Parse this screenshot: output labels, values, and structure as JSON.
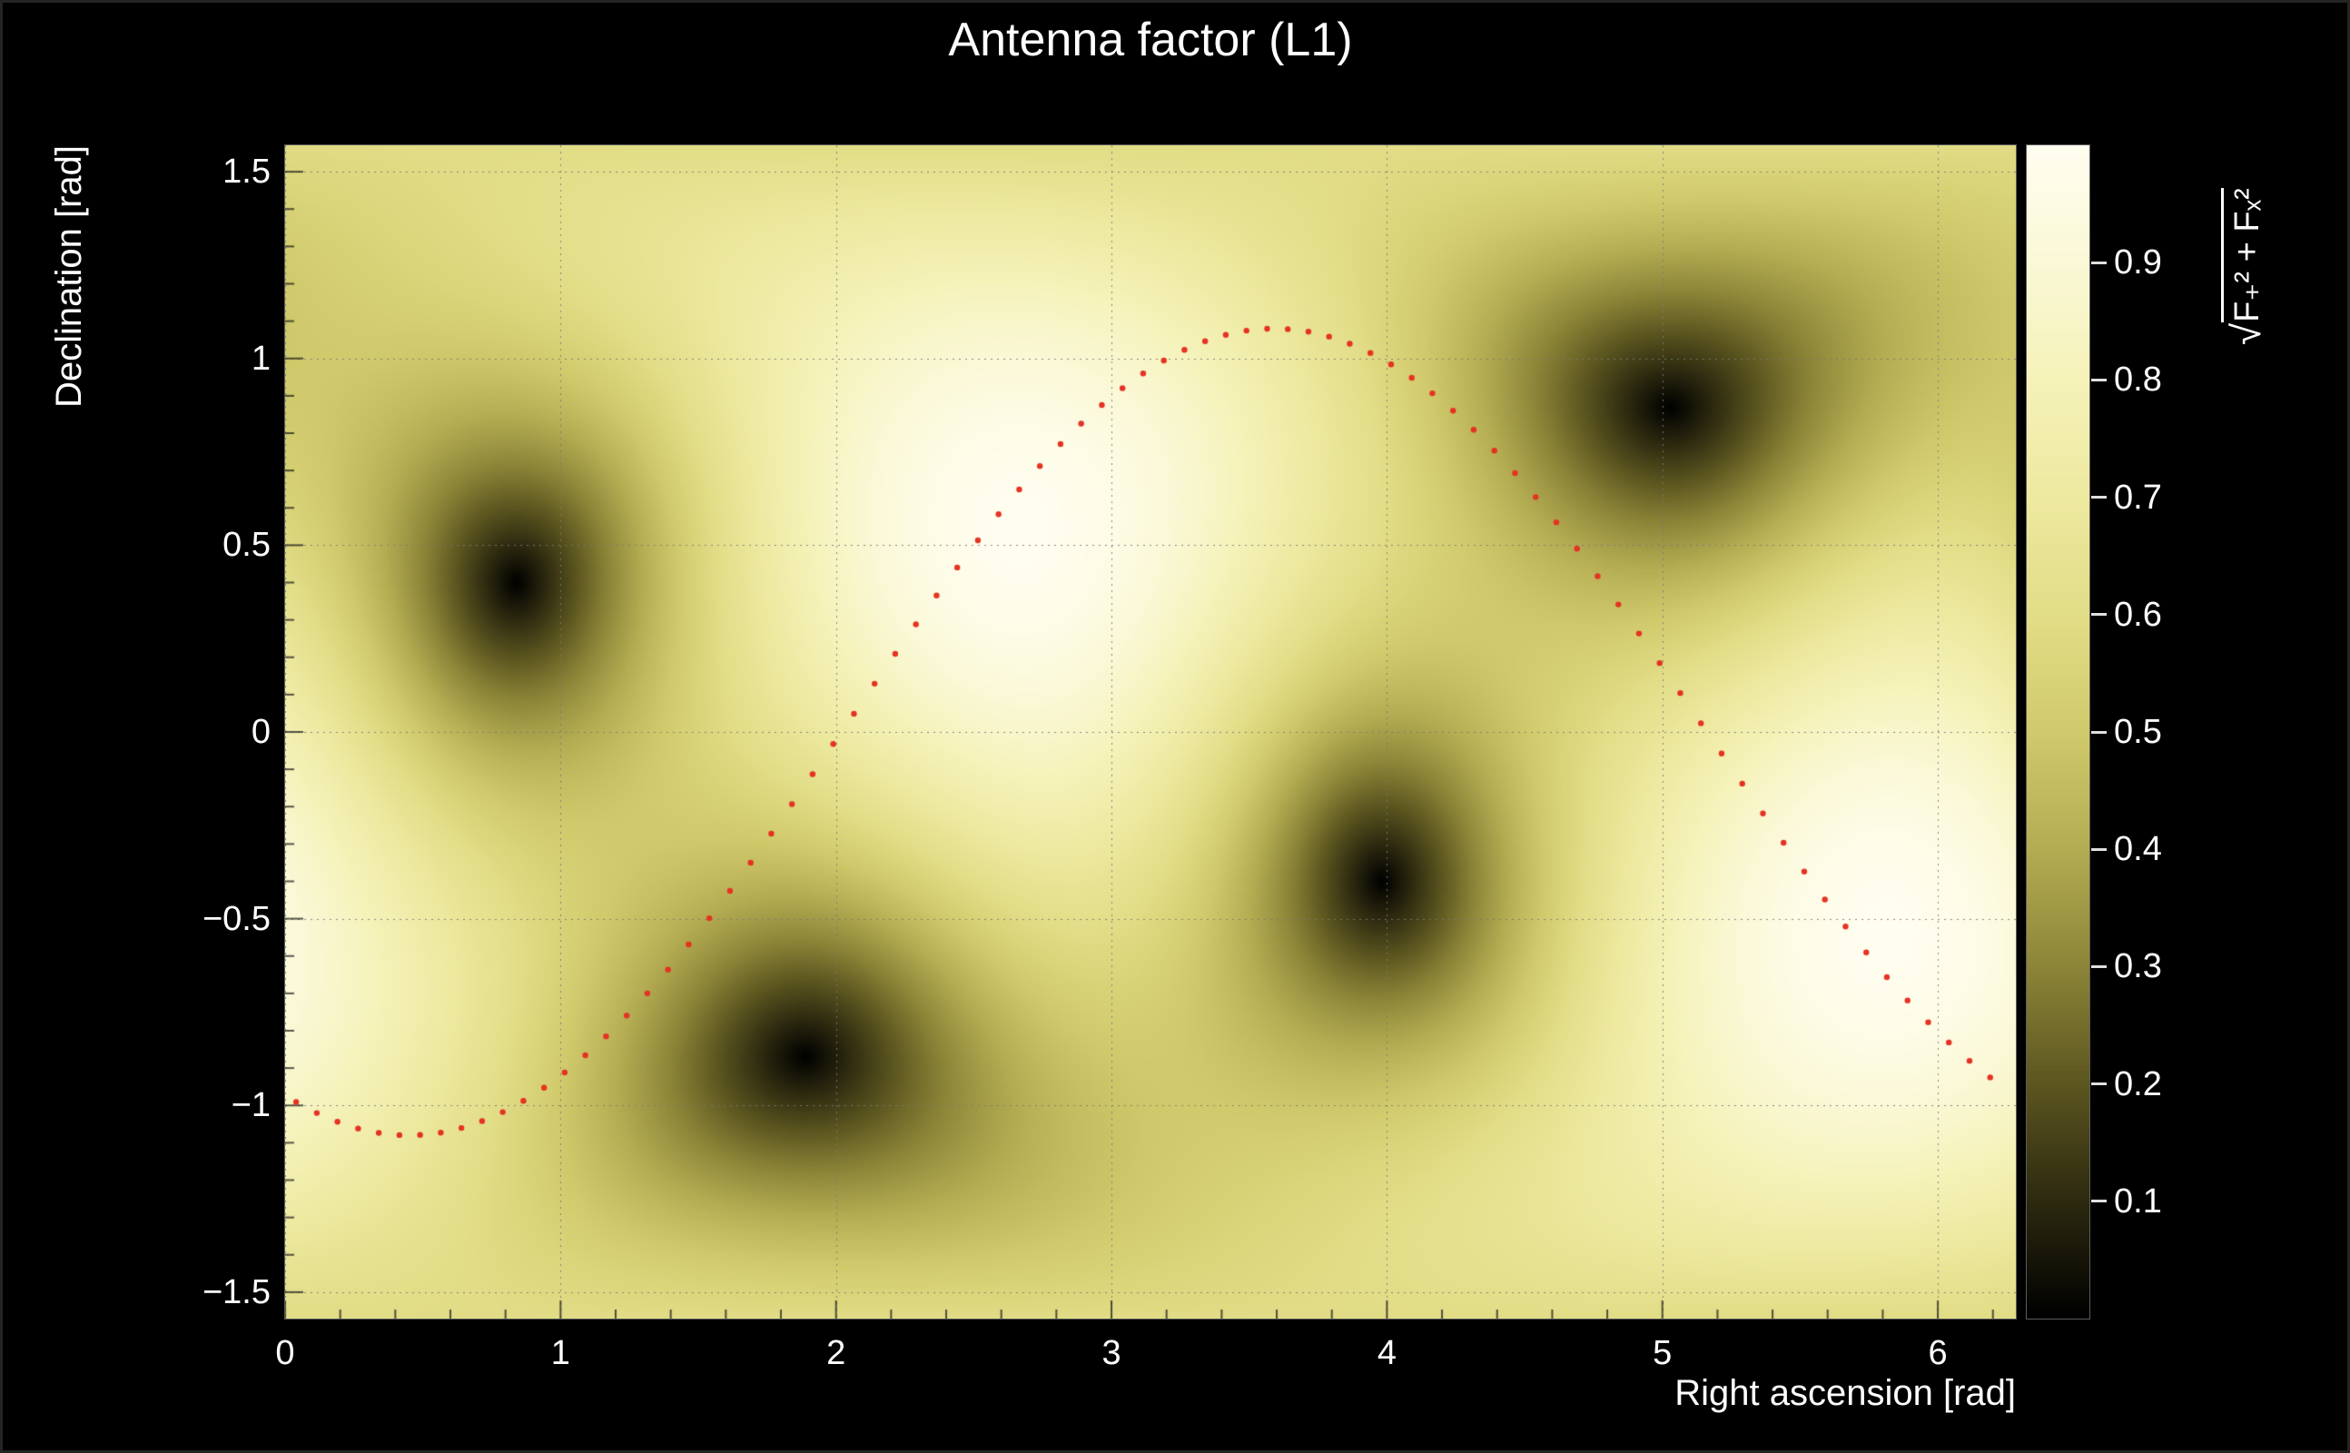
{
  "figure": {
    "background": "#000000",
    "text_color": "#ffffff"
  },
  "axes": {
    "x": {
      "title": "Right ascension [rad]",
      "tick_values": [
        0,
        1,
        2,
        3,
        4,
        5,
        6
      ],
      "tick_labels": [
        "0",
        "1",
        "2",
        "3",
        "4",
        "5",
        "6"
      ],
      "min": 0,
      "max": 6.28319,
      "minor_step": 0.2
    },
    "y": {
      "title": "Declination [rad]",
      "tick_values": [
        -1.5,
        -1,
        -0.5,
        0,
        0.5,
        1,
        1.5
      ],
      "tick_labels": [
        "−1.5",
        "−1",
        "−0.5",
        "0",
        "0.5",
        "1",
        "1.5"
      ],
      "min": -1.5708,
      "max": 1.5708,
      "minor_step": 0.1
    },
    "z": {
      "title_radical": "√",
      "title_expr": "F₊² + Fₓ²",
      "tick_values": [
        0.1,
        0.2,
        0.3,
        0.4,
        0.5,
        0.6,
        0.7,
        0.8,
        0.9
      ],
      "tick_labels": [
        "0.1",
        "0.2",
        "0.3",
        "0.4",
        "0.5",
        "0.6",
        "0.7",
        "0.8",
        "0.9"
      ],
      "min": 0,
      "max": 1
    }
  },
  "chart_data": {
    "type": "heatmap",
    "title": "Antenna factor (L1)",
    "xlabel": "Right ascension [rad]",
    "ylabel": "Declination [rad]",
    "zlabel": "√(F₊² + Fₓ²)",
    "xlim": [
      0,
      6.28319
    ],
    "ylim": [
      -1.5708,
      1.5708
    ],
    "zlim": [
      0,
      1
    ],
    "grid": true,
    "grid_color": "#7a7a7a",
    "description": "Sky map of the rms antenna response √(F₊²+Fₓ²) of the L1 detector; four dark nulls (value→0) in antipodal pairs, bright maxima (value→1) at detector zenith/nadir, with a red dotted sinusoidal sky track overlaid.",
    "antenna_null_points_radec": [
      [
        0.84,
        0.4
      ],
      [
        1.87,
        -0.86
      ],
      [
        3.98,
        -0.4
      ],
      [
        5.01,
        0.86
      ]
    ],
    "response_maxima_radec": [
      [
        2.67,
        0.54
      ],
      [
        5.81,
        -0.54
      ]
    ],
    "palette_stops": [
      [
        0.0,
        "#000000"
      ],
      [
        0.1,
        "#2d2a10"
      ],
      [
        0.2,
        "#5c5620"
      ],
      [
        0.3,
        "#8c8538"
      ],
      [
        0.4,
        "#b4ac52"
      ],
      [
        0.5,
        "#d1ca6c"
      ],
      [
        0.6,
        "#e2dd87"
      ],
      [
        0.7,
        "#ede9a0"
      ],
      [
        0.8,
        "#f5f2b9"
      ],
      [
        0.9,
        "#faf8d6"
      ],
      [
        1.0,
        "#fffef0"
      ]
    ],
    "overlay_track": {
      "style": "dotted",
      "color": "#e53222",
      "model": "dec = 1.08 · sin(ra − 2.02)",
      "amplitude": 1.08,
      "phase": 2.02,
      "x_start": 0.04,
      "x_end": 6.24,
      "x_step": 0.075,
      "dot_radius": 3.2,
      "points_sample": [
        [
          0.0,
          -0.97
        ],
        [
          0.3,
          -1.07
        ],
        [
          0.6,
          -1.07
        ],
        [
          0.9,
          -0.97
        ],
        [
          1.2,
          -0.79
        ],
        [
          1.5,
          -0.54
        ],
        [
          1.8,
          -0.24
        ],
        [
          2.1,
          0.09
        ],
        [
          2.4,
          0.4
        ],
        [
          2.7,
          0.68
        ],
        [
          3.0,
          0.9
        ],
        [
          3.3,
          1.04
        ],
        [
          3.6,
          1.08
        ],
        [
          3.9,
          1.03
        ],
        [
          4.2,
          0.89
        ],
        [
          4.5,
          0.66
        ],
        [
          4.8,
          0.38
        ],
        [
          5.1,
          0.07
        ],
        [
          5.4,
          -0.26
        ],
        [
          5.7,
          -0.56
        ],
        [
          6.0,
          -0.81
        ],
        [
          6.24,
          -0.95
        ]
      ]
    }
  }
}
